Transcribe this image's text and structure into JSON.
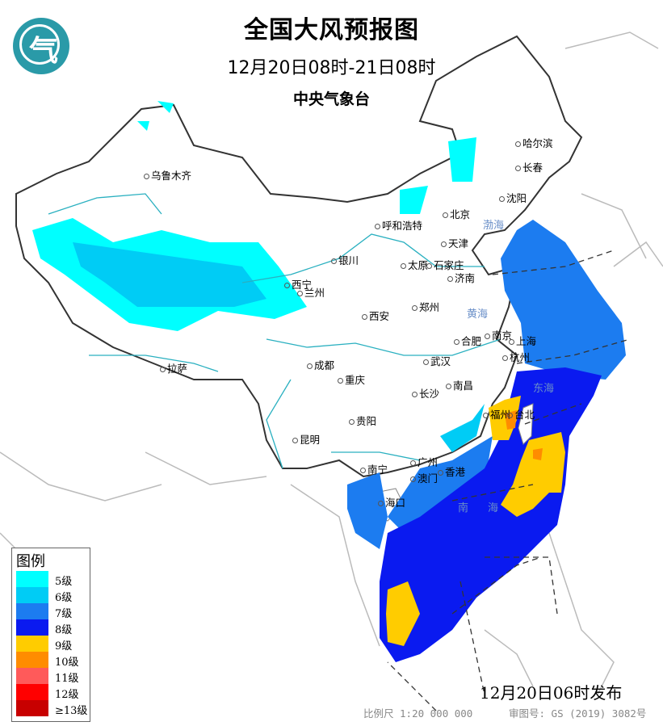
{
  "header": {
    "title": "全国大风预报图",
    "period": "12月20日08时-21日08时",
    "issuer": "中央气象台",
    "logo_glyph": "气"
  },
  "legend": {
    "title": "图例",
    "items": [
      {
        "label": "5级",
        "color": "#00ffff"
      },
      {
        "label": "6级",
        "color": "#00ccf5"
      },
      {
        "label": "7级",
        "color": "#1c7cf0"
      },
      {
        "label": "8级",
        "color": "#0a1af0"
      },
      {
        "label": "9级",
        "color": "#ffcc00"
      },
      {
        "label": "10级",
        "color": "#ff8c00"
      },
      {
        "label": "11级",
        "color": "#ff5a5a"
      },
      {
        "label": "12级",
        "color": "#ff0000"
      },
      {
        "label": "≥13级",
        "color": "#c80000"
      }
    ]
  },
  "cities": [
    "乌鲁木齐",
    "哈尔滨",
    "长春",
    "沈阳",
    "北京",
    "天津",
    "呼和浩特",
    "银川",
    "太原",
    "石家庄",
    "济南",
    "西宁",
    "兰州",
    "郑州",
    "西安",
    "南京",
    "上海",
    "合肥",
    "杭州",
    "武汉",
    "成都",
    "拉萨",
    "南昌",
    "重庆",
    "长沙",
    "福州",
    "台北",
    "贵阳",
    "昆明",
    "南宁",
    "广州",
    "澳门",
    "香港",
    "海口"
  ],
  "seas": [
    "渤海",
    "黄海",
    "东海",
    "南",
    "海"
  ],
  "footer": {
    "issued": "12月20日06时发布",
    "scale": "比例尺 1:20 000 000",
    "review_no": "审图号: GS (2019) 3082号"
  }
}
